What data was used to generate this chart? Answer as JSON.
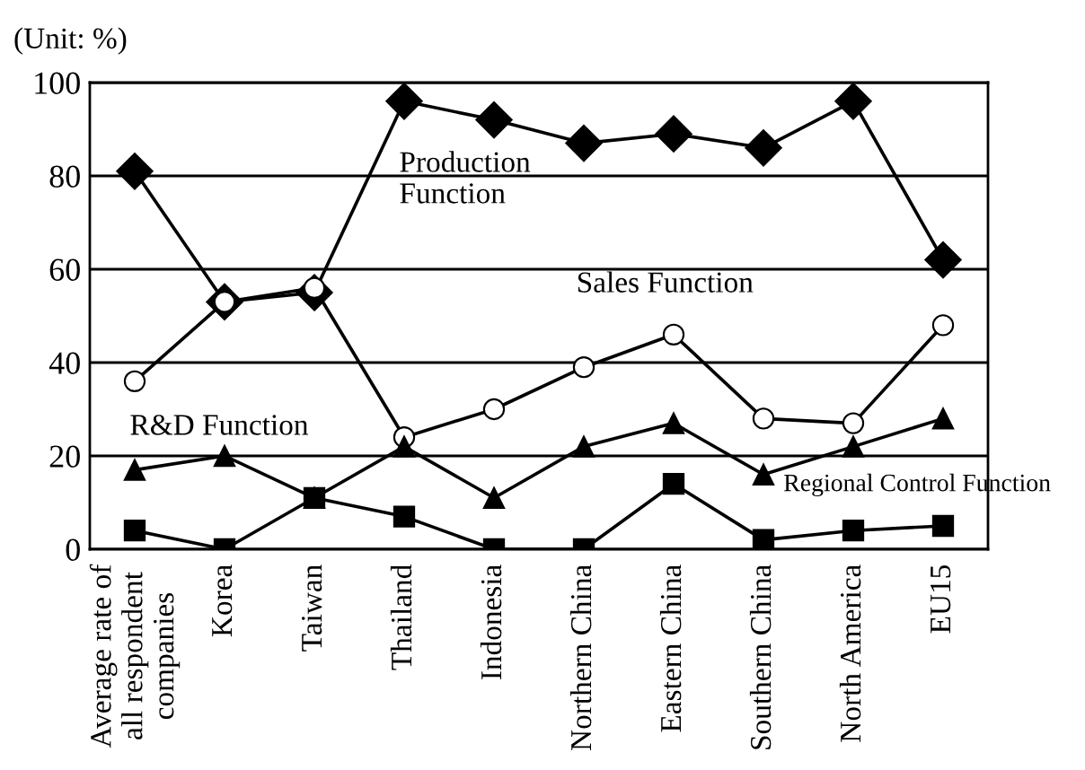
{
  "chart_data": {
    "type": "line",
    "ylabel": "(Unit: %)",
    "categories": [
      "Average rate of\nall respondent\ncompanies",
      "Korea",
      "Taiwan",
      "Thailand",
      "Indonesia",
      "Northern China",
      "Eastern China",
      "Southern China",
      "North America",
      "EU15"
    ],
    "series": [
      {
        "name": "Production\nFunction",
        "color": "#000000",
        "marker": "diamond",
        "values": [
          81,
          53,
          55,
          96,
          92,
          87,
          89,
          86,
          96,
          62
        ]
      },
      {
        "name": "Sales Function",
        "color": "#000000",
        "marker": "circle",
        "values": [
          36,
          53,
          56,
          24,
          30,
          39,
          46,
          28,
          27,
          48
        ]
      },
      {
        "name": "R&D Function",
        "color": "#000000",
        "marker": "triangle",
        "values": [
          17,
          20,
          11,
          22,
          11,
          22,
          27,
          16,
          22,
          28
        ]
      },
      {
        "name": "Regional Control Function",
        "color": "#000000",
        "marker": "square",
        "values": [
          4,
          0,
          11,
          7,
          0,
          0,
          14,
          2,
          4,
          5
        ]
      }
    ],
    "ylim": [
      0,
      100
    ],
    "yticks": [
      0,
      20,
      40,
      60,
      80,
      100
    ],
    "grid": "y",
    "legend": false,
    "line_style": "solid"
  }
}
